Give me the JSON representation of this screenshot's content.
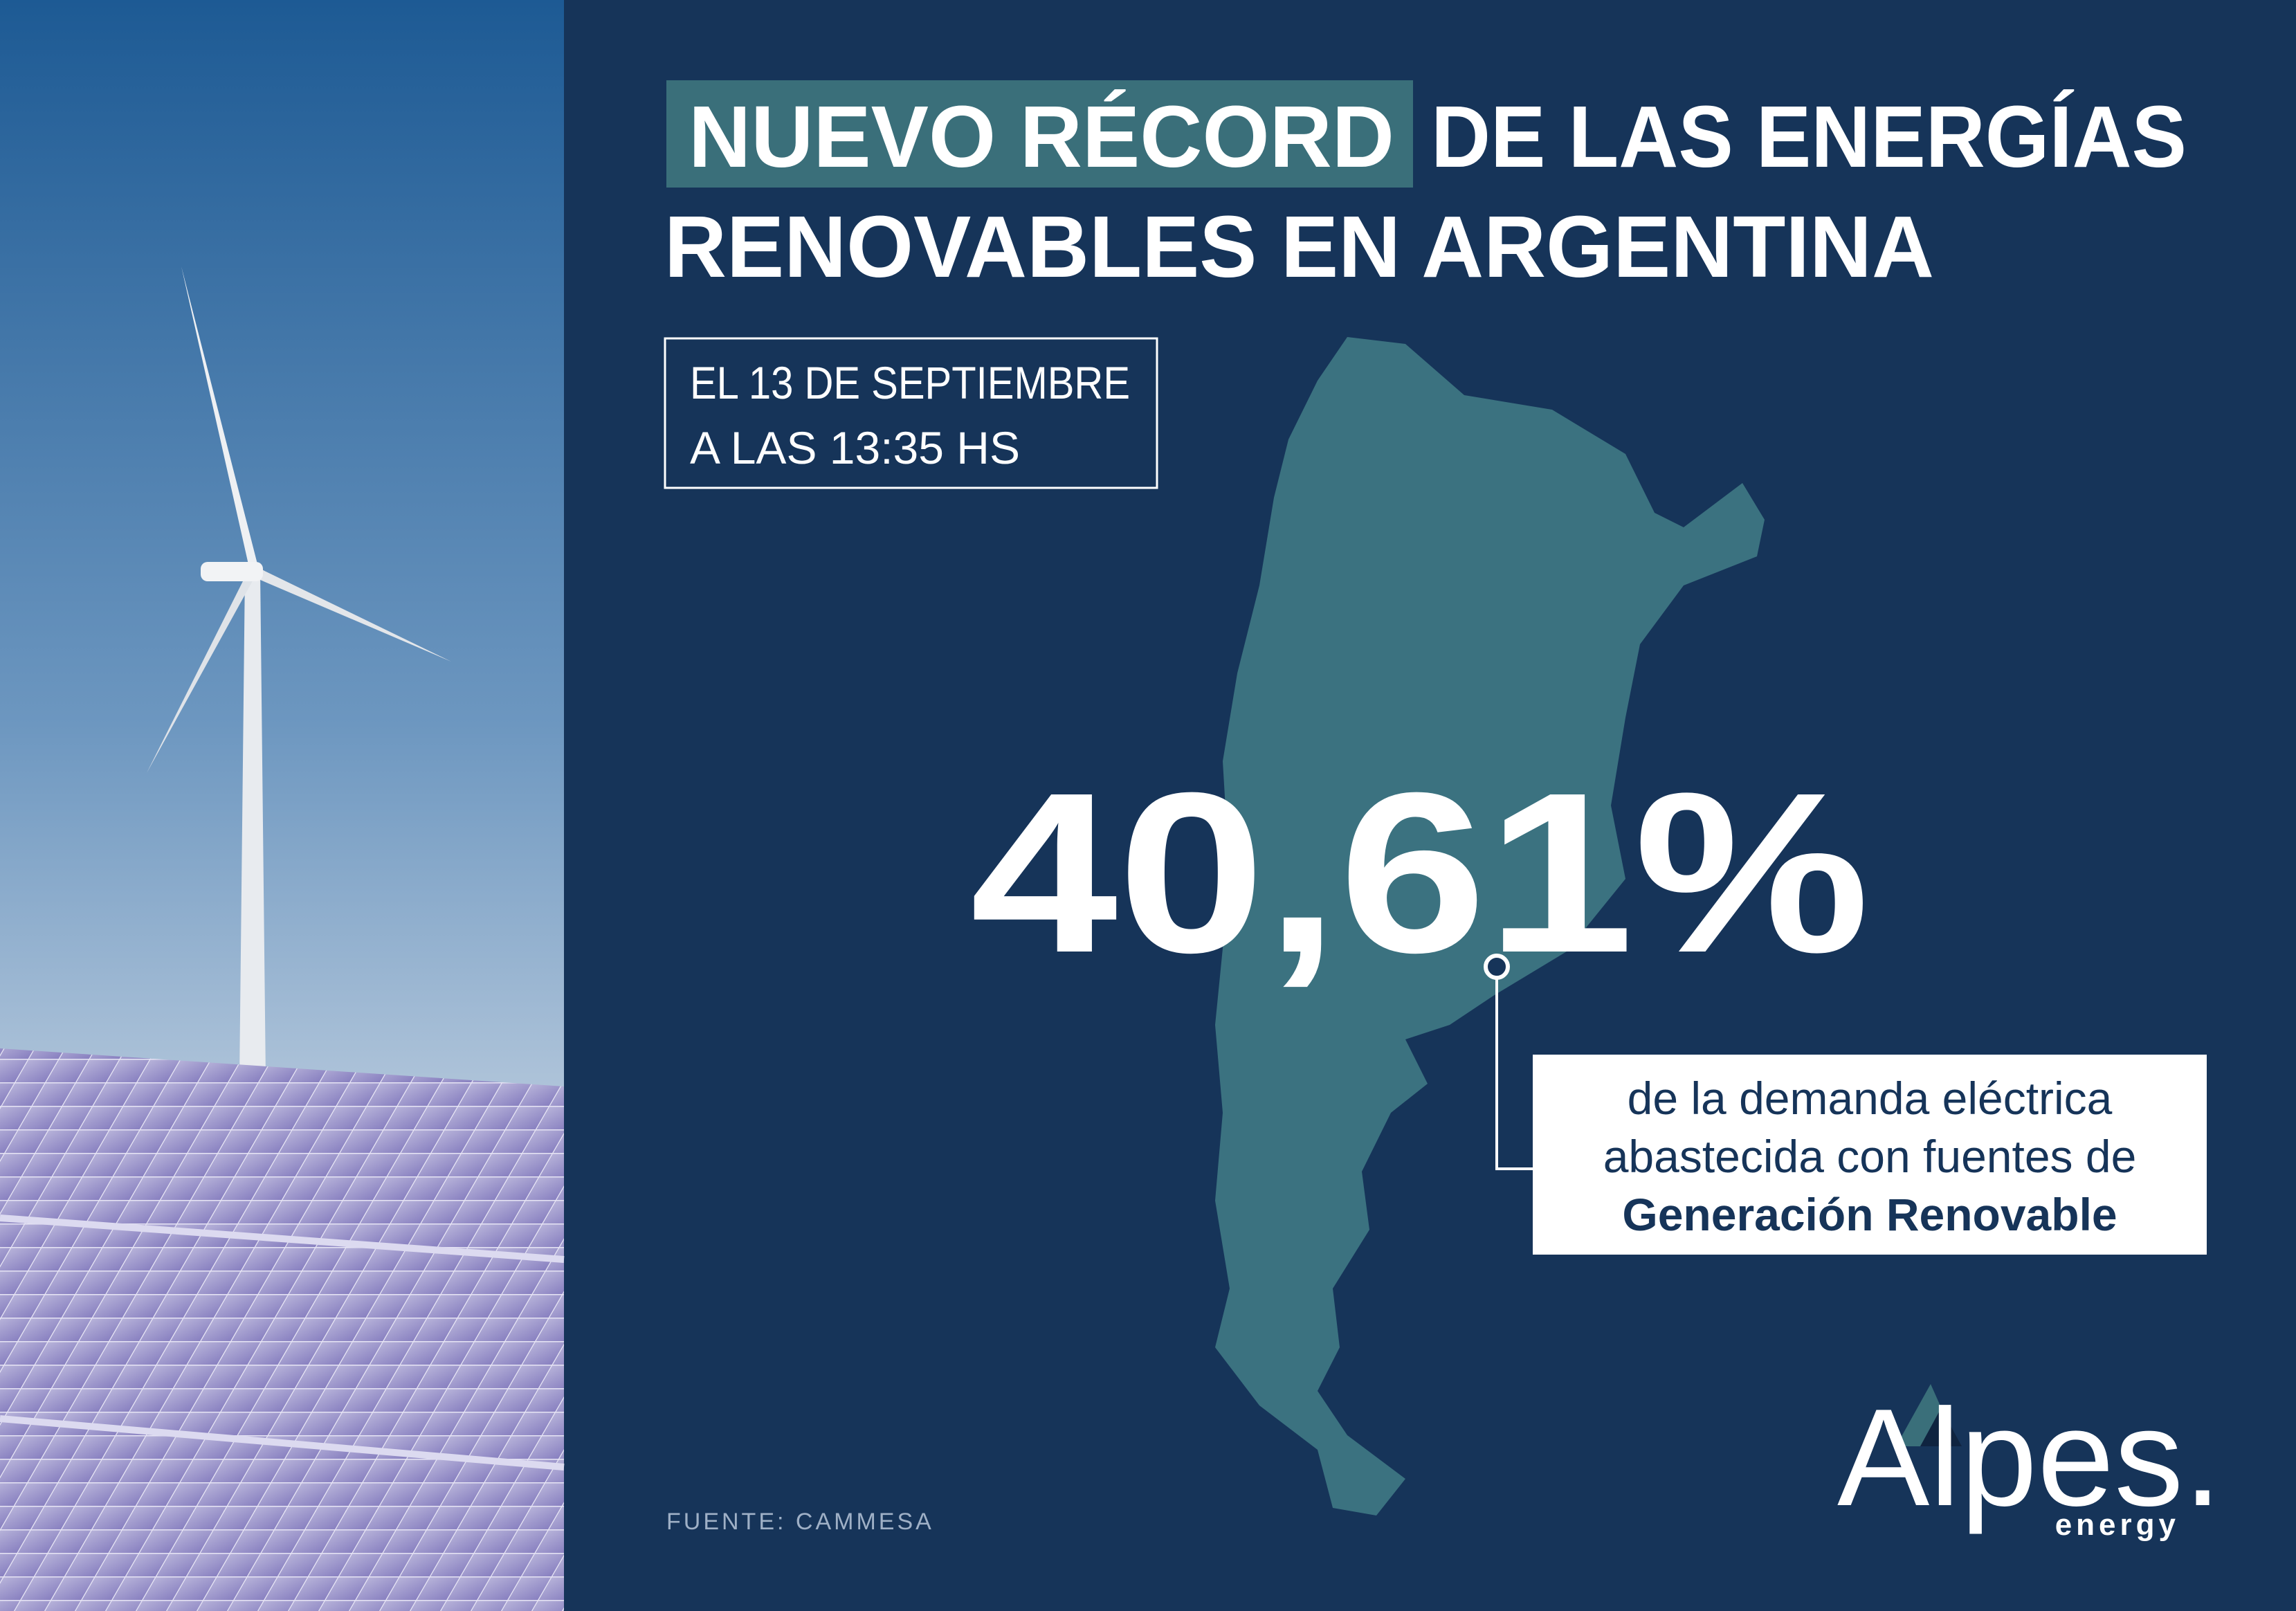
{
  "title": {
    "highlight": "NUEVO RÉCORD",
    "line1_rest": "DE LAS ENERGÍAS",
    "line2": "RENOVABLES EN ARGENTINA"
  },
  "date_box": {
    "lines": [
      "EL 13 DE SEPTIEMBRE",
      "A LAS 13:35 HS"
    ]
  },
  "statistic": {
    "value": "40,61%",
    "description": [
      "de la demanda eléctrica",
      "abastecida con fuentes de",
      "Generación Renovable"
    ]
  },
  "source": "FUENTE: CAMMESA",
  "logo": {
    "name": "Alpes.",
    "tagline": "energy"
  }
}
